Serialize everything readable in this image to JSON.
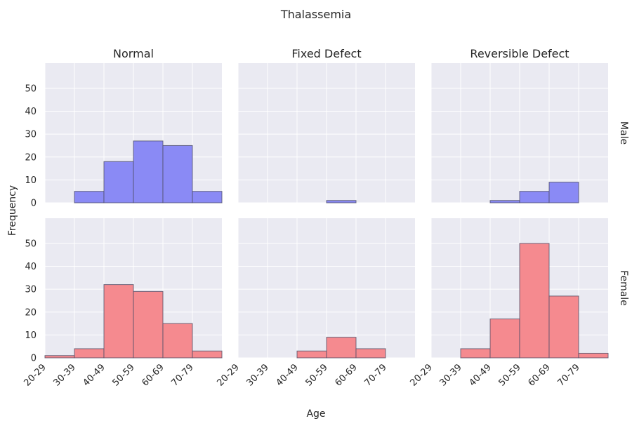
{
  "chart_data": {
    "type": "bar",
    "title": "Thalassemia",
    "xlabel": "Age",
    "ylabel": "Frequency",
    "categories": [
      "20-29",
      "30-39",
      "40-49",
      "50-59",
      "60-69",
      "70-79"
    ],
    "ylim": [
      0,
      61
    ],
    "yticks": [
      0,
      10,
      20,
      30,
      40,
      50
    ],
    "grid": true,
    "columns": [
      "Normal",
      "Fixed Defect",
      "Reversible Defect"
    ],
    "rows": [
      "Male",
      "Female"
    ],
    "row_colors": {
      "Male": "#8a8af5",
      "Female": "#f58a8f"
    },
    "panels": [
      {
        "row": "Male",
        "column": "Normal",
        "values": [
          0,
          5,
          18,
          27,
          25,
          5
        ]
      },
      {
        "row": "Male",
        "column": "Fixed Defect",
        "values": [
          0,
          0,
          0,
          1,
          0,
          0
        ]
      },
      {
        "row": "Male",
        "column": "Reversible Defect",
        "values": [
          0,
          0,
          1,
          5,
          9,
          0
        ]
      },
      {
        "row": "Female",
        "column": "Normal",
        "values": [
          1,
          4,
          32,
          29,
          15,
          3
        ]
      },
      {
        "row": "Female",
        "column": "Fixed Defect",
        "values": [
          0,
          0,
          3,
          9,
          4,
          0
        ]
      },
      {
        "row": "Female",
        "column": "Reversible Defect",
        "values": [
          0,
          4,
          17,
          50,
          27,
          2
        ]
      }
    ]
  }
}
